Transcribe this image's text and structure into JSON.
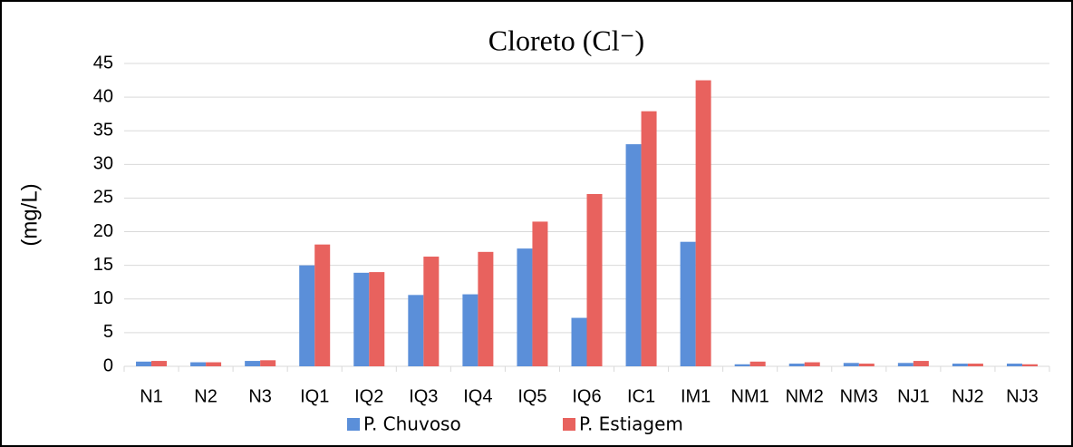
{
  "chart_data": {
    "type": "bar",
    "title": "Cloreto (Cl⁻)",
    "ylabel": "(mg/L)",
    "categories": [
      "N1",
      "N2",
      "N3",
      "IQ1",
      "IQ2",
      "IQ3",
      "IQ4",
      "IQ5",
      "IQ6",
      "IC1",
      "IM1",
      "NM1",
      "NM2",
      "NM3",
      "NJ1",
      "NJ2",
      "NJ3"
    ],
    "series": [
      {
        "name": "P. Chuvoso",
        "color": "#5b8fd9",
        "values": [
          0.7,
          0.6,
          0.8,
          15.0,
          13.9,
          10.6,
          10.7,
          17.5,
          7.2,
          33.0,
          18.5,
          0.3,
          0.4,
          0.5,
          0.5,
          0.4,
          0.4
        ]
      },
      {
        "name": "P. Estiagem",
        "color": "#e8625e",
        "values": [
          0.8,
          0.6,
          0.9,
          18.1,
          14.0,
          16.3,
          17.0,
          21.5,
          25.6,
          37.9,
          42.5,
          0.7,
          0.6,
          0.4,
          0.8,
          0.4,
          0.3
        ]
      }
    ],
    "ylim": [
      0,
      45
    ],
    "yticks": [
      0,
      5,
      10,
      15,
      20,
      25,
      30,
      35,
      40,
      45
    ],
    "grid": true,
    "legend": "bottom"
  }
}
